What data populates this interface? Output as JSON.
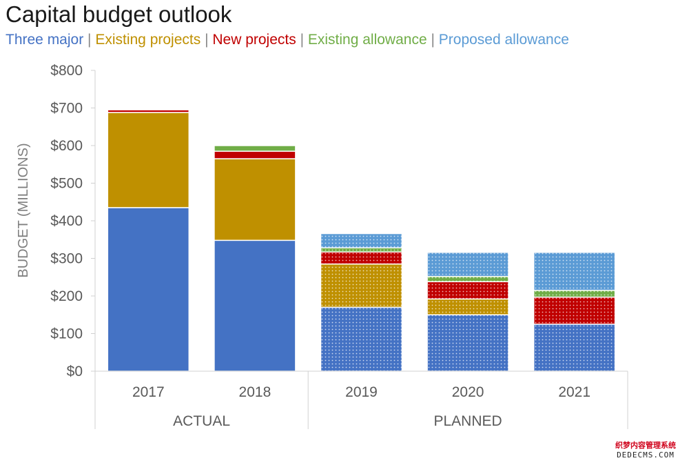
{
  "chart_data": {
    "type": "bar",
    "stacked": true,
    "title": "Capital budget outlook",
    "ylabel": "BUDGET (MILLIONS)",
    "xlabel": "",
    "ylim": [
      0,
      800
    ],
    "y_ticks": [
      "$0",
      "$100",
      "$200",
      "$300",
      "$400",
      "$500",
      "$600",
      "$700",
      "$800"
    ],
    "y_tick_values": [
      0,
      100,
      200,
      300,
      400,
      500,
      600,
      700,
      800
    ],
    "categories": [
      "2017",
      "2018",
      "2019",
      "2020",
      "2021"
    ],
    "groups": [
      {
        "label": "ACTUAL",
        "categories": [
          "2017",
          "2018"
        ]
      },
      {
        "label": "PLANNED",
        "categories": [
          "2019",
          "2020",
          "2021"
        ]
      }
    ],
    "patterned_categories": [
      "2019",
      "2020",
      "2021"
    ],
    "grid": false,
    "legend_position": "top",
    "series": [
      {
        "name": "Three major",
        "color": "#4472c4",
        "values": [
          435,
          348,
          170,
          150,
          125
        ]
      },
      {
        "name": "Existing projects",
        "color": "#bf9000",
        "values": [
          253,
          217,
          115,
          42,
          0
        ]
      },
      {
        "name": "New projects",
        "color": "#c00000",
        "values": [
          7,
          20,
          32,
          46,
          72
        ]
      },
      {
        "name": "Existing allowance",
        "color": "#70ad47",
        "values": [
          0,
          15,
          11,
          14,
          18
        ]
      },
      {
        "name": "Proposed allowance",
        "color": "#5b9bd5",
        "values": [
          0,
          0,
          38,
          64,
          101
        ]
      }
    ]
  },
  "legend_separator": "|",
  "watermark": {
    "line1": "织梦内容管理系统",
    "line2": "DEDECMS.COM"
  }
}
